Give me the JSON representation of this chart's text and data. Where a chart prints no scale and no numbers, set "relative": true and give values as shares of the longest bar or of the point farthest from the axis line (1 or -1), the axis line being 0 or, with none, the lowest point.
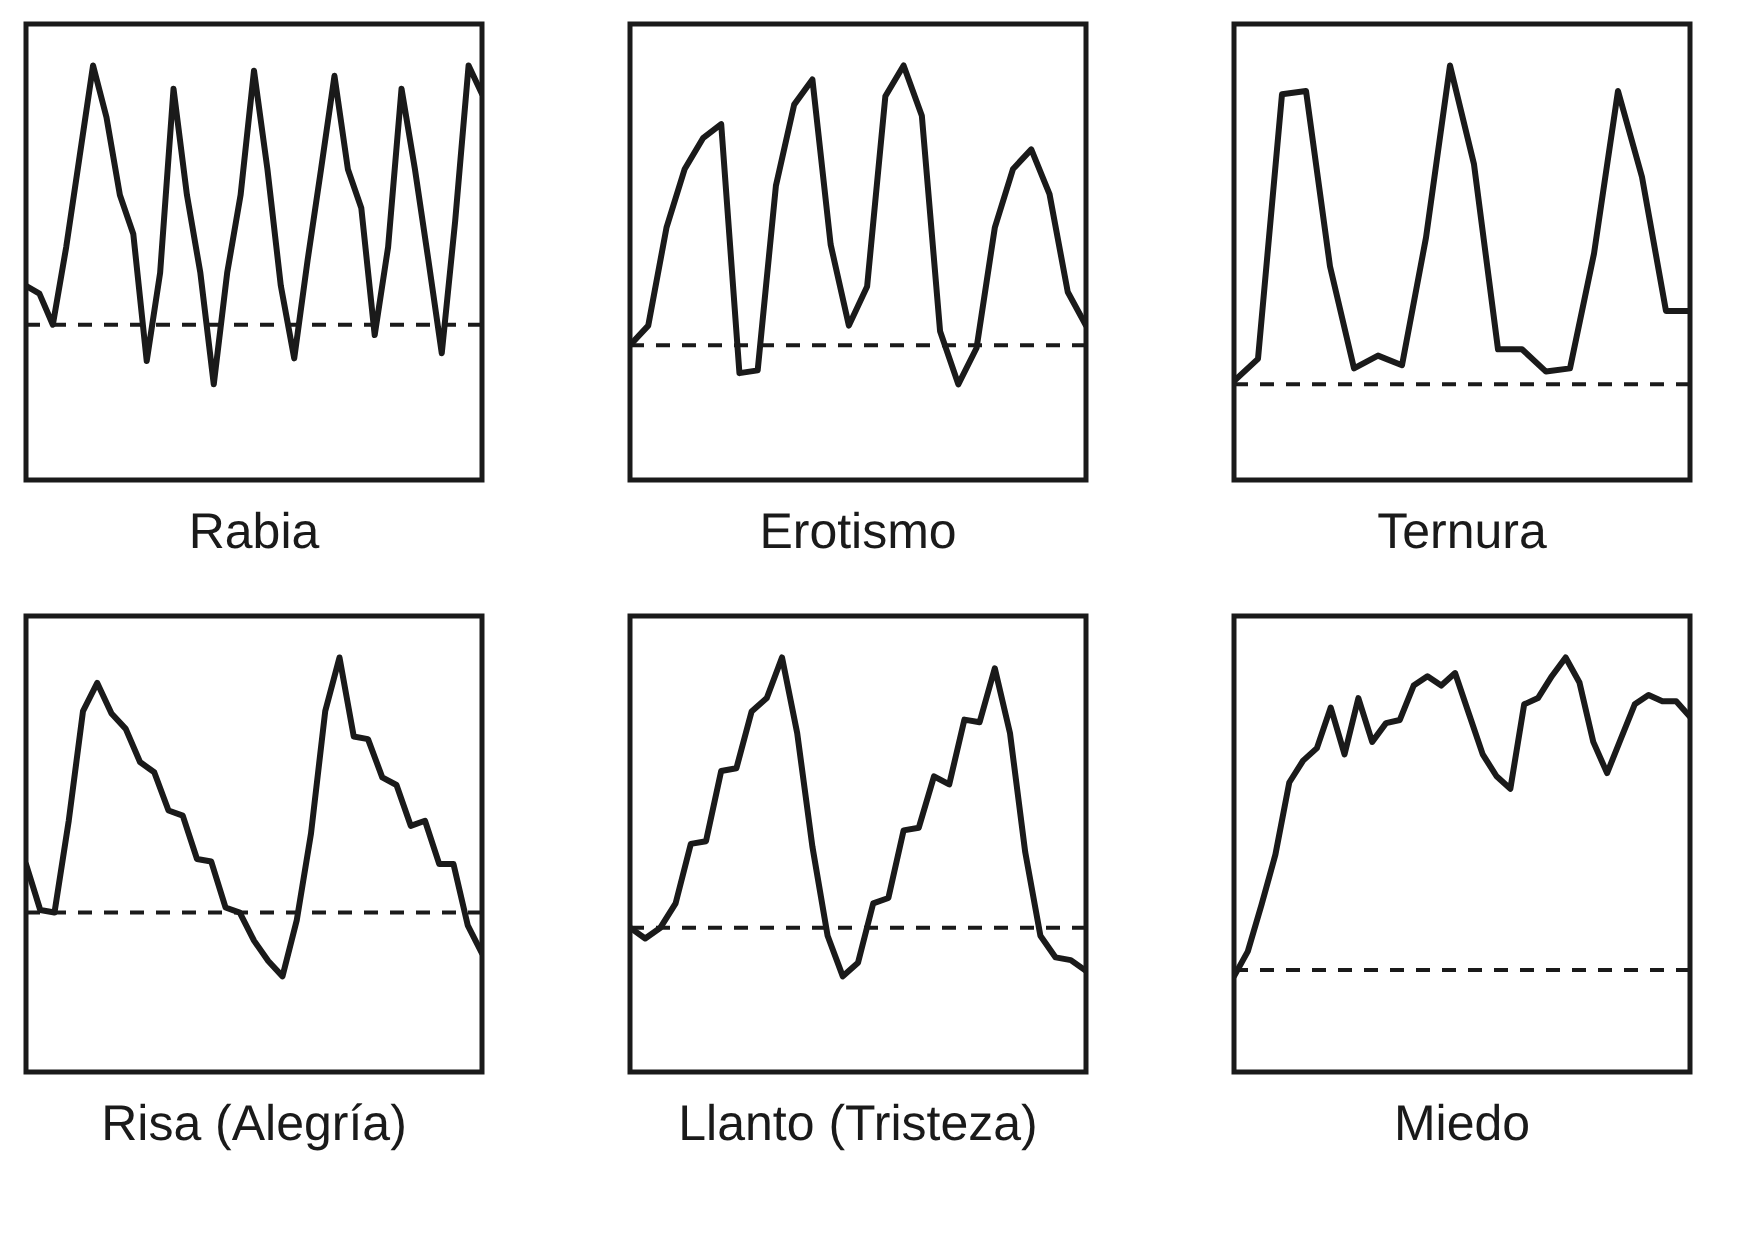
{
  "chart_data": [
    {
      "type": "line",
      "title": "Rabia",
      "relative": true,
      "categories": [
        null,
        null,
        null,
        null,
        null,
        null,
        null,
        null,
        null,
        null,
        null,
        null,
        null,
        null,
        null,
        null,
        null,
        null,
        null,
        null,
        null,
        null,
        null,
        null,
        null,
        null,
        null,
        null,
        null,
        null,
        null,
        null,
        null,
        null,
        null
      ],
      "series": [
        {
          "color": "#1a1a1a",
          "values": [
            0.15,
            0.12,
            0.0,
            0.3,
            0.65,
            1.0,
            0.8,
            0.5,
            0.35,
            -0.14,
            0.2,
            0.91,
            0.5,
            0.2,
            -0.23,
            0.2,
            0.5,
            0.98,
            0.6,
            0.15,
            -0.13,
            0.25,
            0.6,
            0.96,
            0.6,
            0.45,
            -0.04,
            0.3,
            0.91,
            0.6,
            0.25,
            -0.11,
            0.4,
            1.0,
            0.89
          ]
        }
      ],
      "ref_lines": [
        {
          "axis": "y",
          "value": 0,
          "line_style": "dashed",
          "color": "#1a1a1a"
        }
      ]
    },
    {
      "type": "line",
      "title": "Erotismo",
      "relative": true,
      "categories": [
        null,
        null,
        null,
        null,
        null,
        null,
        null,
        null,
        null,
        null,
        null,
        null,
        null,
        null,
        null,
        null,
        null,
        null,
        null,
        null,
        null,
        null,
        null,
        null,
        null,
        null
      ],
      "series": [
        {
          "color": "#1a1a1a",
          "values": [
            0.0,
            0.07,
            0.42,
            0.63,
            0.74,
            0.79,
            -0.1,
            -0.09,
            0.57,
            0.86,
            0.95,
            0.36,
            0.07,
            0.21,
            0.89,
            1.0,
            0.82,
            0.05,
            -0.14,
            -0.01,
            0.42,
            0.63,
            0.7,
            0.54,
            0.19,
            0.07
          ]
        }
      ],
      "ref_lines": [
        {
          "axis": "y",
          "value": 0,
          "line_style": "dashed",
          "color": "#1a1a1a"
        }
      ]
    },
    {
      "type": "line",
      "title": "Ternura",
      "relative": true,
      "categories": [
        null,
        null,
        null,
        null,
        null,
        null,
        null,
        null,
        null,
        null,
        null,
        null,
        null,
        null,
        null,
        null,
        null,
        null,
        null,
        null
      ],
      "series": [
        {
          "color": "#1a1a1a",
          "values": [
            0.01,
            0.08,
            0.91,
            0.92,
            0.37,
            0.05,
            0.09,
            0.06,
            0.46,
            1.0,
            0.69,
            0.11,
            0.11,
            0.04,
            0.05,
            0.41,
            0.92,
            0.65,
            0.23,
            0.23
          ]
        }
      ],
      "ref_lines": [
        {
          "axis": "y",
          "value": 0,
          "line_style": "dashed",
          "color": "#1a1a1a"
        }
      ]
    },
    {
      "type": "line",
      "title": "Risa (Alegría)",
      "relative": true,
      "categories": [
        null,
        null,
        null,
        null,
        null,
        null,
        null,
        null,
        null,
        null,
        null,
        null,
        null,
        null,
        null,
        null,
        null,
        null,
        null,
        null,
        null,
        null,
        null,
        null,
        null,
        null,
        null,
        null,
        null,
        null,
        null,
        null,
        null
      ],
      "series": [
        {
          "color": "#1a1a1a",
          "values": [
            0.19,
            0.01,
            0.0,
            0.36,
            0.79,
            0.9,
            0.78,
            0.72,
            0.59,
            0.55,
            0.4,
            0.38,
            0.21,
            0.2,
            0.02,
            0.0,
            -0.11,
            -0.19,
            -0.25,
            -0.03,
            0.31,
            0.79,
            1.0,
            0.69,
            0.68,
            0.53,
            0.5,
            0.34,
            0.36,
            0.19,
            0.19,
            -0.05,
            -0.16
          ]
        }
      ],
      "ref_lines": [
        {
          "axis": "y",
          "value": 0,
          "line_style": "dashed",
          "color": "#1a1a1a"
        }
      ]
    },
    {
      "type": "line",
      "title": "Llanto (Tristeza)",
      "relative": true,
      "categories": [
        null,
        null,
        null,
        null,
        null,
        null,
        null,
        null,
        null,
        null,
        null,
        null,
        null,
        null,
        null,
        null,
        null,
        null,
        null,
        null,
        null,
        null,
        null,
        null,
        null,
        null,
        null,
        null,
        null,
        null,
        null
      ],
      "series": [
        {
          "color": "#1a1a1a",
          "values": [
            0.0,
            -0.04,
            0.0,
            0.09,
            0.31,
            0.32,
            0.58,
            0.59,
            0.8,
            0.85,
            1.0,
            0.72,
            0.3,
            -0.03,
            -0.18,
            -0.13,
            0.09,
            0.11,
            0.36,
            0.37,
            0.56,
            0.53,
            0.77,
            0.76,
            0.96,
            0.72,
            0.28,
            -0.03,
            -0.11,
            -0.12,
            -0.16
          ]
        }
      ],
      "ref_lines": [
        {
          "axis": "y",
          "value": 0,
          "line_style": "dashed",
          "color": "#1a1a1a"
        }
      ]
    },
    {
      "type": "line",
      "title": "Miedo",
      "relative": true,
      "categories": [
        null,
        null,
        null,
        null,
        null,
        null,
        null,
        null,
        null,
        null,
        null,
        null,
        null,
        null,
        null,
        null,
        null,
        null,
        null,
        null,
        null,
        null,
        null,
        null,
        null,
        null,
        null,
        null,
        null,
        null,
        null,
        null,
        null,
        null
      ],
      "series": [
        {
          "color": "#1a1a1a",
          "values": [
            -0.02,
            0.06,
            0.21,
            0.37,
            0.6,
            0.67,
            0.71,
            0.84,
            0.69,
            0.87,
            0.73,
            0.79,
            0.8,
            0.91,
            0.94,
            0.91,
            0.95,
            0.82,
            0.69,
            0.62,
            0.58,
            0.85,
            0.87,
            0.94,
            1.0,
            0.92,
            0.73,
            0.63,
            0.74,
            0.85,
            0.88,
            0.86,
            0.86,
            0.81
          ]
        }
      ],
      "ref_lines": [
        {
          "axis": "y",
          "value": 0,
          "line_style": "dashed",
          "color": "#1a1a1a"
        }
      ]
    }
  ]
}
